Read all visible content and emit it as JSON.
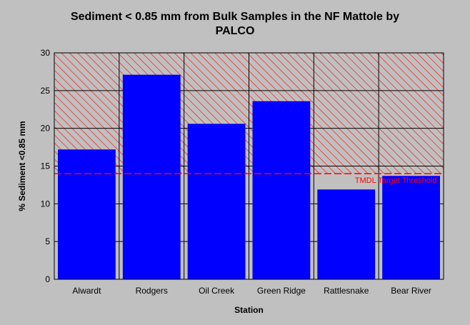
{
  "chart_data": {
    "type": "bar",
    "title_line1": "Sediment < 0.85 mm from Bulk Samples in the NF Mattole by",
    "title_line2": "PALCO",
    "xlabel": "Station",
    "ylabel": "% Sediment <0.85 mm",
    "categories": [
      "Alwardt",
      "Rodgers",
      "Oil Creek",
      "Green Ridge",
      "Rattlesnake",
      "Bear River"
    ],
    "values": [
      17.2,
      27.1,
      20.6,
      23.6,
      11.9,
      13.7
    ],
    "ylim": [
      0,
      30
    ],
    "yticks": [
      "0",
      "5",
      "10",
      "15",
      "20",
      "25",
      "30"
    ],
    "grid": true,
    "threshold": {
      "value": 14,
      "label": "TMDL Target Threshold"
    },
    "colors": {
      "bar": "#0000ff",
      "threshold": "#ff0000",
      "hatch": "#ff0000",
      "plot_background": "#c0c0c0",
      "grid": "#000000"
    }
  }
}
